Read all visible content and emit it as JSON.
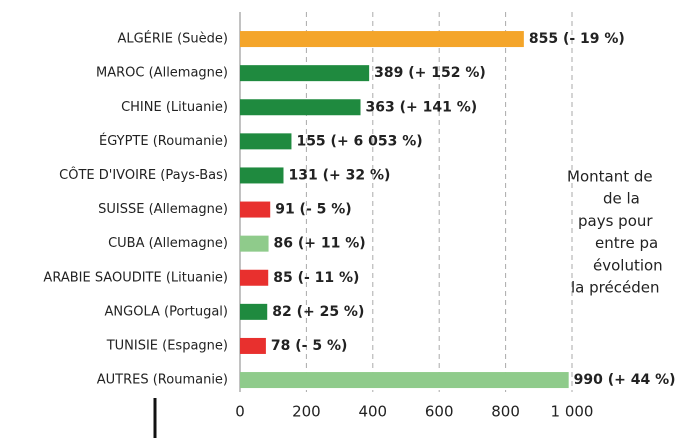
{
  "chart_data": {
    "type": "bar",
    "orientation": "horizontal",
    "categories": [
      "ALGÉRIE (Suède)",
      "MAROC (Allemagne)",
      "CHINE (Lituanie)",
      "ÉGYPTE (Roumanie)",
      "CÔTE D'IVOIRE (Pays-Bas)",
      "SUISSE (Allemagne)",
      "CUBA (Allemagne)",
      "ARABIE SAOUDITE (Lituanie)",
      "ANGOLA (Portugal)",
      "TUNISIE (Espagne)",
      "AUTRES (Roumanie)"
    ],
    "values": [
      855,
      389,
      363,
      155,
      131,
      91,
      86,
      85,
      82,
      78,
      990
    ],
    "value_labels": [
      "855 (- 19 %)",
      "389 (+ 152 %)",
      "363 (+ 141 %)",
      "155 (+ 6 053 %)",
      "131 (+ 32 %)",
      "91 (- 5 %)",
      "86 (+ 11 %)",
      "85 (- 11 %)",
      "82 (+ 25 %)",
      "78 (- 5 %)",
      "990 (+ 44 %)"
    ],
    "colors": [
      "#f4a52a",
      "#1f8a3f",
      "#1f8a3f",
      "#1f8a3f",
      "#1f8a3f",
      "#e8302e",
      "#8fcb8b",
      "#e8302e",
      "#1f8a3f",
      "#e8302e",
      "#8fcb8b"
    ],
    "xlim": [
      0,
      1000
    ],
    "xticks": [
      0,
      200,
      400,
      600,
      800,
      {
        "value": 1000,
        "label": "1 000"
      }
    ],
    "grid": true,
    "annotation": [
      "Montant de",
      "de la",
      "pays pour",
      "entre pa",
      "évolution",
      "la précéden"
    ]
  }
}
